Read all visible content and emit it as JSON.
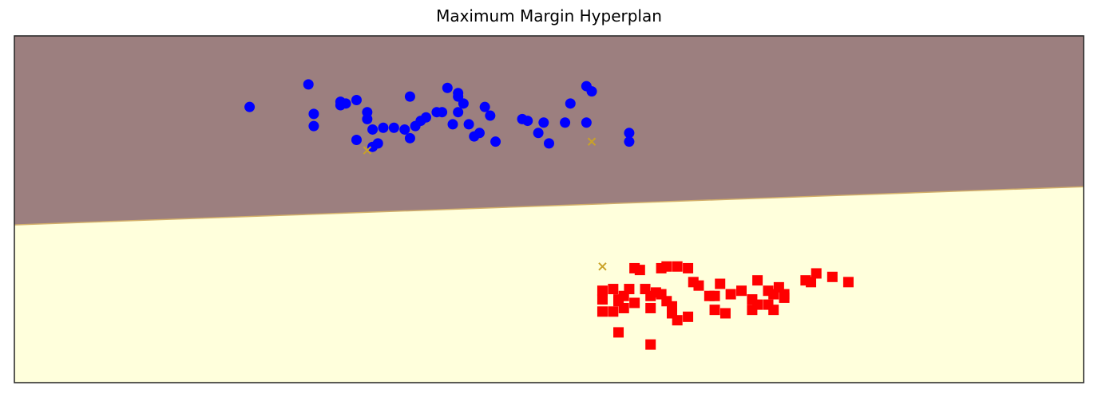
{
  "chart_data": {
    "type": "scatter",
    "title": "Maximum Margin Hyperplan",
    "xlabel": "",
    "ylabel": "",
    "xlim": [
      0,
      10
    ],
    "ylim": [
      0,
      10
    ],
    "axis_ticks": "none",
    "grid": false,
    "legend": "none",
    "decision_boundary": {
      "y_at_xmin": 4.55,
      "y_at_xmax": 5.65
    },
    "regions": [
      {
        "side": "above",
        "color": "#9c7f7f"
      },
      {
        "side": "below",
        "color": "#ffffdc"
      },
      {
        "side": "boundary",
        "color": "#d4b06a"
      }
    ],
    "series": [
      {
        "marker": "circle",
        "color": "#0000ff",
        "points": [
          [
            2.2,
            7.95
          ],
          [
            2.75,
            8.6
          ],
          [
            2.8,
            7.75
          ],
          [
            2.8,
            7.4
          ],
          [
            3.05,
            8.1
          ],
          [
            3.05,
            8.0
          ],
          [
            3.1,
            8.05
          ],
          [
            3.2,
            8.15
          ],
          [
            3.2,
            7.0
          ],
          [
            3.3,
            7.8
          ],
          [
            3.3,
            7.6
          ],
          [
            3.35,
            7.3
          ],
          [
            3.35,
            6.8
          ],
          [
            3.4,
            6.9
          ],
          [
            3.45,
            7.35
          ],
          [
            3.55,
            7.35
          ],
          [
            3.65,
            7.3
          ],
          [
            3.7,
            7.05
          ],
          [
            3.7,
            8.25
          ],
          [
            3.75,
            7.4
          ],
          [
            3.8,
            7.55
          ],
          [
            3.85,
            7.65
          ],
          [
            3.95,
            7.8
          ],
          [
            4.0,
            7.8
          ],
          [
            4.05,
            8.5
          ],
          [
            4.1,
            7.45
          ],
          [
            4.15,
            7.8
          ],
          [
            4.15,
            8.25
          ],
          [
            4.15,
            8.35
          ],
          [
            4.2,
            8.05
          ],
          [
            4.25,
            7.45
          ],
          [
            4.3,
            7.1
          ],
          [
            4.35,
            7.2
          ],
          [
            4.4,
            7.95
          ],
          [
            4.45,
            7.7
          ],
          [
            4.5,
            6.95
          ],
          [
            4.75,
            7.6
          ],
          [
            4.8,
            7.55
          ],
          [
            4.9,
            7.2
          ],
          [
            4.95,
            7.5
          ],
          [
            5.0,
            6.9
          ],
          [
            5.15,
            7.5
          ],
          [
            5.2,
            8.05
          ],
          [
            5.35,
            8.55
          ],
          [
            5.35,
            7.5
          ],
          [
            5.4,
            8.4
          ],
          [
            5.75,
            7.2
          ],
          [
            5.75,
            6.95
          ]
        ]
      },
      {
        "marker": "square",
        "color": "#ff0000",
        "points": [
          [
            5.6,
            2.7
          ],
          [
            5.75,
            2.7
          ],
          [
            5.65,
            2.35
          ],
          [
            5.7,
            2.15
          ],
          [
            5.5,
            2.65
          ],
          [
            5.5,
            2.4
          ],
          [
            5.5,
            2.05
          ],
          [
            5.6,
            2.05
          ],
          [
            5.65,
            2.4
          ],
          [
            5.7,
            2.5
          ],
          [
            5.8,
            2.3
          ],
          [
            5.8,
            3.3
          ],
          [
            5.85,
            3.25
          ],
          [
            5.9,
            2.7
          ],
          [
            5.95,
            2.15
          ],
          [
            5.95,
            2.5
          ],
          [
            6.0,
            2.6
          ],
          [
            6.05,
            2.55
          ],
          [
            6.1,
            2.35
          ],
          [
            6.15,
            2.2
          ],
          [
            6.15,
            2.0
          ],
          [
            6.2,
            1.8
          ],
          [
            6.3,
            3.3
          ],
          [
            6.35,
            2.9
          ],
          [
            6.4,
            2.8
          ],
          [
            6.5,
            2.5
          ],
          [
            6.55,
            2.5
          ],
          [
            6.6,
            2.85
          ],
          [
            6.7,
            2.55
          ],
          [
            6.8,
            2.65
          ],
          [
            6.9,
            2.4
          ],
          [
            6.9,
            2.1
          ],
          [
            6.95,
            2.25
          ],
          [
            6.95,
            2.95
          ],
          [
            7.05,
            2.65
          ],
          [
            7.05,
            2.25
          ],
          [
            7.1,
            2.55
          ],
          [
            7.1,
            2.1
          ],
          [
            7.15,
            2.75
          ],
          [
            7.2,
            2.45
          ],
          [
            7.2,
            2.55
          ],
          [
            5.65,
            1.45
          ],
          [
            5.95,
            1.1
          ],
          [
            6.3,
            1.9
          ],
          [
            7.4,
            2.95
          ],
          [
            6.1,
            3.35
          ],
          [
            6.05,
            3.3
          ],
          [
            6.2,
            3.35
          ],
          [
            7.5,
            3.15
          ],
          [
            7.65,
            3.05
          ],
          [
            7.8,
            2.9
          ],
          [
            7.45,
            2.9
          ],
          [
            6.55,
            2.1
          ],
          [
            6.65,
            2.0
          ]
        ]
      }
    ],
    "support_vectors": {
      "marker": "x",
      "color": "#c9a227",
      "points": [
        [
          3.3,
          6.7
        ],
        [
          5.4,
          6.95
        ],
        [
          5.5,
          3.35
        ]
      ]
    }
  }
}
